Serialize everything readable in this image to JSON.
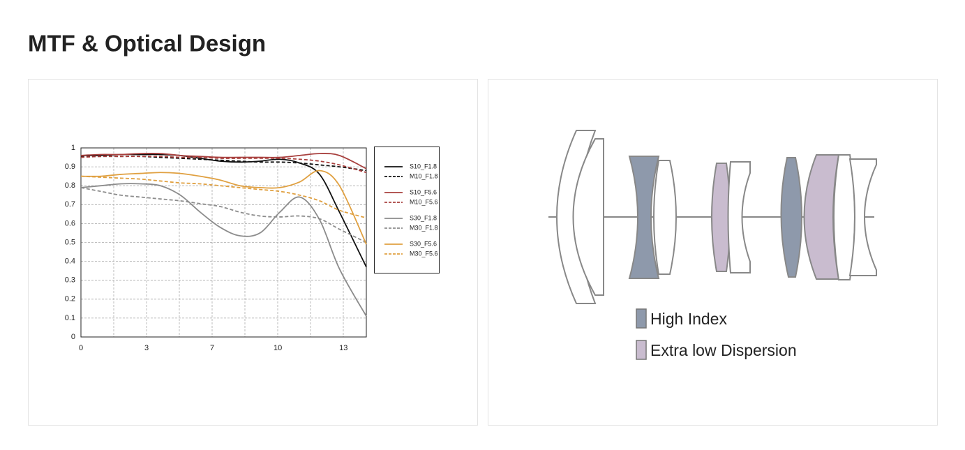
{
  "title": "MTF & Optical Design",
  "chart_data": {
    "type": "line",
    "x": [
      0,
      1,
      2,
      3,
      4,
      5,
      6,
      7,
      8,
      9,
      10,
      11,
      12,
      13,
      14.35
    ],
    "xlim": [
      0,
      14.35
    ],
    "xticks": [
      0,
      {
        "value": 3.3,
        "label": "3"
      },
      {
        "value": 6.6,
        "label": "7"
      },
      {
        "value": 9.9,
        "label": "10"
      },
      {
        "value": 13.2,
        "label": "13"
      }
    ],
    "ylim": [
      0,
      1
    ],
    "yticks": [
      0,
      0.1,
      0.2,
      0.3,
      0.4,
      0.5,
      0.6,
      0.7,
      0.8,
      0.9,
      1
    ],
    "grid": true,
    "legend": "right",
    "series": [
      {
        "name": "S10_F1.8",
        "color": "#111111",
        "dash": false,
        "values": [
          0.96,
          0.96,
          0.965,
          0.965,
          0.965,
          0.96,
          0.945,
          0.93,
          0.925,
          0.93,
          0.94,
          0.92,
          0.86,
          0.66,
          0.37
        ]
      },
      {
        "name": "M10_F1.8",
        "color": "#111111",
        "dash": true,
        "values": [
          0.955,
          0.955,
          0.955,
          0.955,
          0.95,
          0.945,
          0.94,
          0.935,
          0.93,
          0.925,
          0.925,
          0.92,
          0.91,
          0.9,
          0.88
        ]
      },
      {
        "name": "S10_F5.6",
        "color": "#a8403e",
        "dash": false,
        "values": [
          0.96,
          0.965,
          0.965,
          0.97,
          0.97,
          0.96,
          0.955,
          0.95,
          0.95,
          0.95,
          0.95,
          0.96,
          0.97,
          0.96,
          0.89
        ]
      },
      {
        "name": "M10_F5.6",
        "color": "#a8403e",
        "dash": true,
        "values": [
          0.95,
          0.955,
          0.955,
          0.955,
          0.955,
          0.95,
          0.95,
          0.945,
          0.945,
          0.945,
          0.945,
          0.94,
          0.93,
          0.91,
          0.87
        ]
      },
      {
        "name": "S30_F1.8",
        "color": "#8c8c8c",
        "dash": false,
        "values": [
          0.79,
          0.8,
          0.81,
          0.81,
          0.8,
          0.75,
          0.66,
          0.58,
          0.535,
          0.55,
          0.66,
          0.74,
          0.62,
          0.36,
          0.11
        ]
      },
      {
        "name": "M30_F1.8",
        "color": "#8c8c8c",
        "dash": true,
        "values": [
          0.79,
          0.77,
          0.75,
          0.74,
          0.73,
          0.72,
          0.705,
          0.69,
          0.66,
          0.64,
          0.635,
          0.64,
          0.625,
          0.57,
          0.5
        ]
      },
      {
        "name": "S30_F5.6",
        "color": "#e0a040",
        "dash": false,
        "values": [
          0.85,
          0.85,
          0.86,
          0.865,
          0.87,
          0.865,
          0.85,
          0.83,
          0.8,
          0.79,
          0.79,
          0.82,
          0.88,
          0.8,
          0.49
        ]
      },
      {
        "name": "M30_F5.6",
        "color": "#e0a040",
        "dash": true,
        "values": [
          0.85,
          0.845,
          0.84,
          0.835,
          0.825,
          0.815,
          0.81,
          0.8,
          0.79,
          0.78,
          0.77,
          0.75,
          0.72,
          0.67,
          0.63
        ]
      }
    ]
  },
  "diagram": {
    "legend": [
      {
        "label": "High Index",
        "color": "#8e99ab"
      },
      {
        "label": "Extra low Dispersion",
        "color": "#c9bccf"
      }
    ]
  }
}
